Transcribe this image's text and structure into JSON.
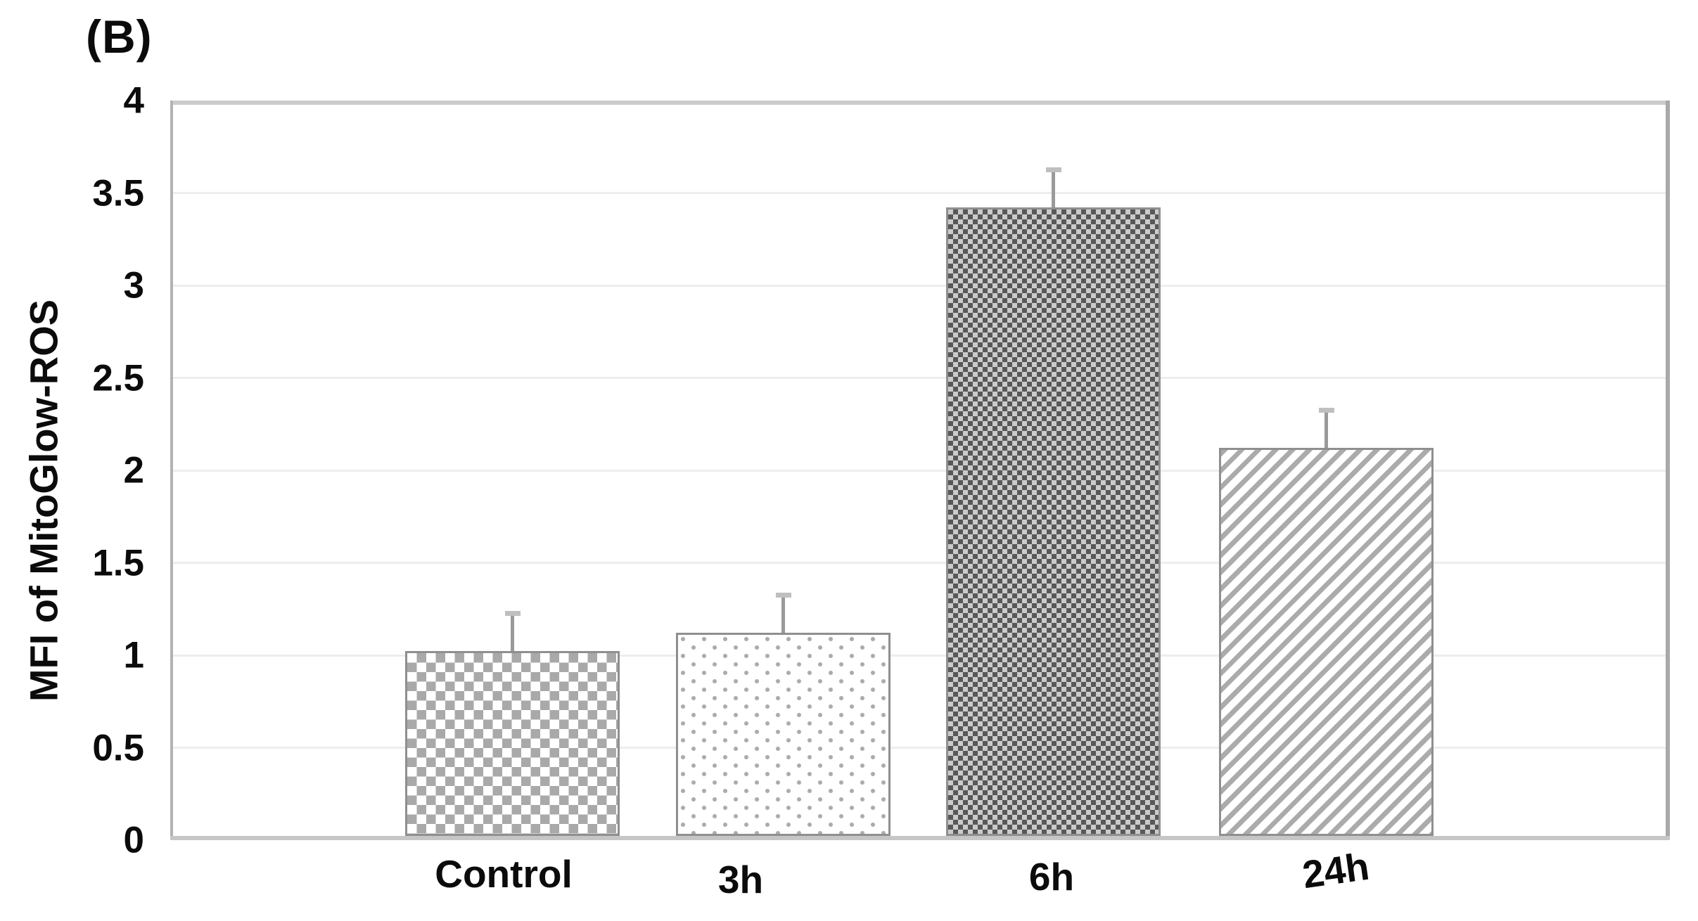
{
  "figure": {
    "panel_label": "(B)"
  },
  "chart_data": {
    "type": "bar",
    "title": "",
    "xlabel": "",
    "ylabel": "MFI of MitoGlow-ROS",
    "categories": [
      "Control",
      "3h",
      "6h",
      "24h"
    ],
    "values": [
      1.0,
      1.1,
      3.4,
      2.1
    ],
    "error_bars": [
      0.2,
      0.2,
      0.2,
      0.2
    ],
    "ylim": [
      0,
      4
    ],
    "ytick_labels": [
      "0",
      "0.5",
      "1",
      "1.5",
      "2",
      "2.5",
      "3",
      "3.5",
      "4"
    ],
    "grid": "horizontal-every-0.5",
    "legend_position": "none",
    "bar_patterns": [
      "gray-checkerboard",
      "gray-dots",
      "dark-dense-checker",
      "gray-diagonal-stripes"
    ],
    "colors": {
      "pattern_gray": "#a9a9a9",
      "dense_dark": "#585858",
      "dense_light": "#cbcbcb",
      "bar_border": "#8f8f8f",
      "gridline": "#ededed",
      "frame": "#bdbdbd",
      "error_bar": "#9a9a9a",
      "text": "#0b0b0b",
      "background": "#ffffff"
    }
  }
}
